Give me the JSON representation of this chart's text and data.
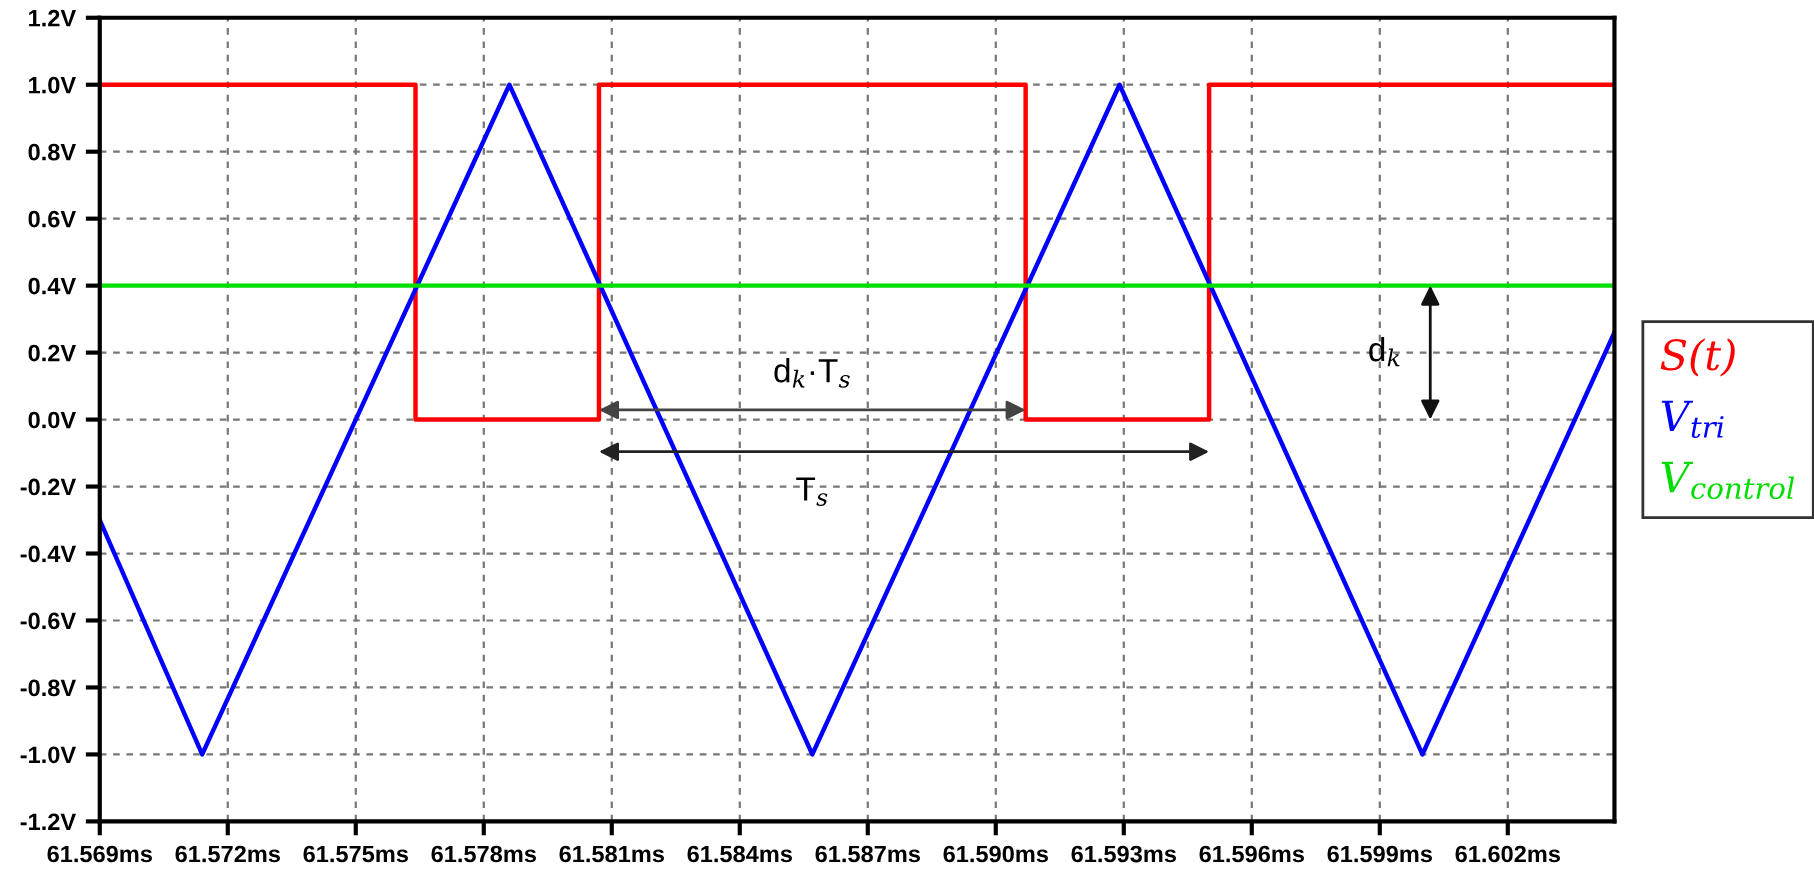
{
  "chart_data": {
    "type": "line",
    "series": [
      {
        "name": "S(t)",
        "type": "step",
        "color": "#ff0000",
        "x": [
          61.569,
          61.5764,
          61.5807,
          61.5907,
          61.595,
          61.6045
        ],
        "values": [
          1.0,
          0.0,
          1.0,
          0.0,
          1.0,
          1.0
        ]
      },
      {
        "name": "V$_{tri}$",
        "color": "#0000ff",
        "x": [
          61.569,
          61.5714,
          61.5786,
          61.5857,
          61.5929,
          61.6,
          61.6045
        ],
        "values": [
          -0.3,
          -1.0,
          1.0,
          -1.0,
          1.0,
          -1.0,
          0.26
        ]
      },
      {
        "name": "V$_{control}$",
        "color": "#00dd00",
        "x": [
          61.569,
          61.6045
        ],
        "values": [
          0.4,
          0.4
        ]
      }
    ],
    "xlim": [
      61.569,
      61.6045
    ],
    "xticks": [
      {
        "value": 61.569,
        "label": "61.569ms"
      },
      {
        "value": 61.572,
        "label": "61.572ms"
      },
      {
        "value": 61.575,
        "label": "61.575ms"
      },
      {
        "value": 61.578,
        "label": "61.578ms"
      },
      {
        "value": 61.581,
        "label": "61.581ms"
      },
      {
        "value": 61.584,
        "label": "61.584ms"
      },
      {
        "value": 61.587,
        "label": "61.587ms"
      },
      {
        "value": 61.59,
        "label": "61.590ms"
      },
      {
        "value": 61.593,
        "label": "61.593ms"
      },
      {
        "value": 61.596,
        "label": "61.596ms"
      },
      {
        "value": 61.599,
        "label": "61.599ms"
      },
      {
        "value": 61.602,
        "label": "61.602ms"
      }
    ],
    "ylim": [
      -1.2,
      1.2
    ],
    "yticks": [
      {
        "value": -1.2,
        "label": "-1.2V"
      },
      {
        "value": -1.0,
        "label": "-1.0V"
      },
      {
        "value": -0.8,
        "label": "-0.8V"
      },
      {
        "value": -0.6,
        "label": "-0.6V"
      },
      {
        "value": -0.4,
        "label": "-0.4V"
      },
      {
        "value": -0.2,
        "label": "-0.2V"
      },
      {
        "value": 0.0,
        "label": "0.0V"
      },
      {
        "value": 0.2,
        "label": "0.2V"
      },
      {
        "value": 0.4,
        "label": "0.4V"
      },
      {
        "value": 0.6,
        "label": "0.6V"
      },
      {
        "value": 0.8,
        "label": "0.8V"
      },
      {
        "value": 1.0,
        "label": "1.0V"
      },
      {
        "value": 1.2,
        "label": "1.2V"
      }
    ],
    "annotations": [
      "d$_{k}$·T$_{s}$",
      "T$_{s}$",
      "d$_{k}$"
    ],
    "grid": true,
    "legend": "right",
    "line_style": "solid",
    "marker": "none"
  }
}
